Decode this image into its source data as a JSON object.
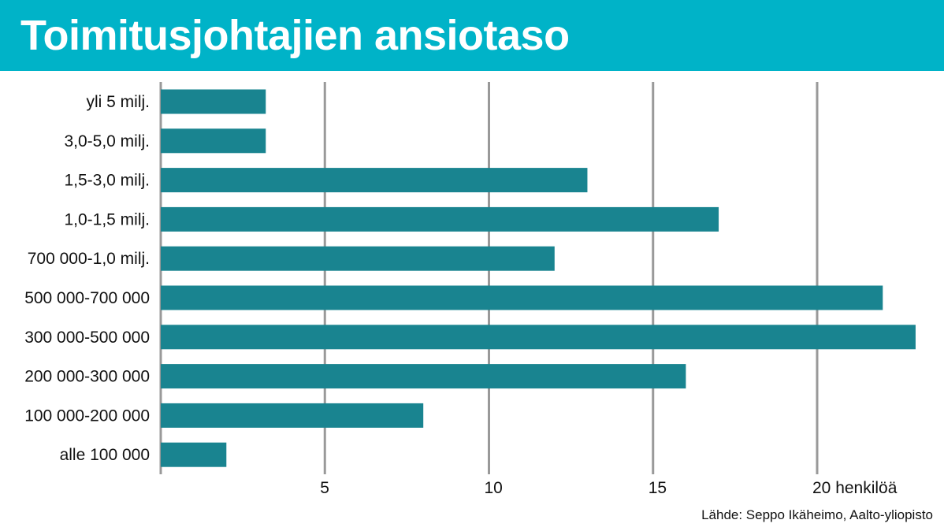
{
  "chart_data": {
    "type": "bar",
    "orientation": "horizontal",
    "title": "Toimitusjohtajien ansiotaso",
    "categories": [
      "yli 5 milj.",
      "3,0-5,0 milj.",
      "1,5-3,0 milj.",
      "1,0-1,5 milj.",
      "700 000-1,0 milj.",
      "500 000-700 000",
      "300 000-500 000",
      "200 000-300 000",
      "100 000-200 000",
      "alle 100 000"
    ],
    "values": [
      3.2,
      3.2,
      13,
      17,
      12,
      22,
      23,
      16,
      8,
      2
    ],
    "xticks": [
      5,
      10,
      15,
      20
    ],
    "xtick_labels": [
      "5",
      "10",
      "15",
      "20 henkilöä"
    ],
    "xlim": [
      0,
      23.5
    ],
    "xlabel": "henkilöä",
    "ylabel": "",
    "grid": true,
    "source": "Lähde: Seppo Ikäheimo, Aalto-yliopisto"
  },
  "colors": {
    "header_bg": "#00b3c8",
    "bar": "#198490",
    "grid": "#999999",
    "text": "#111111"
  }
}
